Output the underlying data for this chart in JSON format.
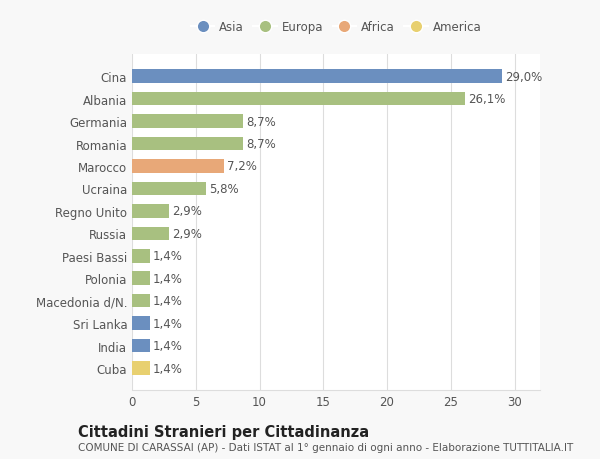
{
  "countries": [
    "Cina",
    "Albania",
    "Germania",
    "Romania",
    "Marocco",
    "Ucraina",
    "Regno Unito",
    "Russia",
    "Paesi Bassi",
    "Polonia",
    "Macedonia d/N.",
    "Sri Lanka",
    "India",
    "Cuba"
  ],
  "values": [
    29.0,
    26.1,
    8.7,
    8.7,
    7.2,
    5.8,
    2.9,
    2.9,
    1.4,
    1.4,
    1.4,
    1.4,
    1.4,
    1.4
  ],
  "labels": [
    "29,0%",
    "26,1%",
    "8,7%",
    "8,7%",
    "7,2%",
    "5,8%",
    "2,9%",
    "2,9%",
    "1,4%",
    "1,4%",
    "1,4%",
    "1,4%",
    "1,4%",
    "1,4%"
  ],
  "colors": [
    "#6b8fbf",
    "#a8c080",
    "#a8c080",
    "#a8c080",
    "#e8a878",
    "#a8c080",
    "#a8c080",
    "#a8c080",
    "#a8c080",
    "#a8c080",
    "#a8c080",
    "#6b8fbf",
    "#6b8fbf",
    "#e8d070"
  ],
  "legend_labels": [
    "Asia",
    "Europa",
    "Africa",
    "America"
  ],
  "legend_colors": [
    "#6b8fbf",
    "#a8c080",
    "#e8a878",
    "#e8d070"
  ],
  "title": "Cittadini Stranieri per Cittadinanza",
  "subtitle": "COMUNE DI CARASSAI (AP) - Dati ISTAT al 1° gennaio di ogni anno - Elaborazione TUTTITALIA.IT",
  "xlim": [
    0,
    32
  ],
  "xticks": [
    0,
    5,
    10,
    15,
    20,
    25,
    30
  ],
  "bg_color": "#f8f8f8",
  "plot_bg_color": "#ffffff",
  "grid_color": "#dddddd",
  "text_color": "#555555",
  "label_color": "#555555",
  "bar_height": 0.6,
  "label_fontsize": 8.5,
  "tick_fontsize": 8.5,
  "legend_fontsize": 8.5,
  "title_fontsize": 10.5,
  "subtitle_fontsize": 7.5
}
